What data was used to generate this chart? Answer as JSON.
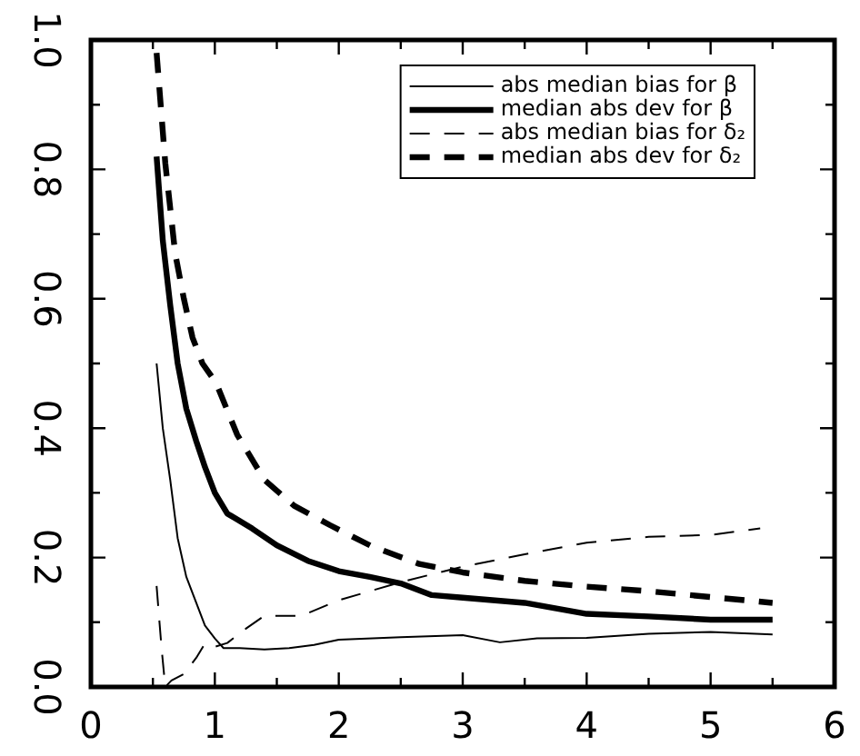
{
  "chart_data": {
    "type": "line",
    "xlim": [
      0,
      6
    ],
    "ylim": [
      0,
      1
    ],
    "xticks": [
      0,
      1,
      2,
      3,
      4,
      5,
      6
    ],
    "yticks": [
      {
        "value": 0,
        "label": "0.0"
      },
      0.2,
      0.4,
      0.6,
      0.8,
      {
        "value": 1,
        "label": "1.0"
      }
    ],
    "grid": false,
    "legend": "top right",
    "marker": "none",
    "series": [
      {
        "name": "abs median bias for β",
        "color": "#000000",
        "line_style": "solid",
        "x": [
          0.53,
          0.58,
          0.64,
          0.7,
          0.77,
          0.85,
          0.92,
          1.0,
          1.07,
          1.2,
          1.4,
          1.6,
          1.8,
          2.0,
          2.5,
          3.0,
          3.3,
          3.6,
          4.0,
          4.5,
          5.0,
          5.5
        ],
        "values": [
          0.5,
          0.4,
          0.32,
          0.23,
          0.17,
          0.13,
          0.095,
          0.075,
          0.06,
          0.06,
          0.058,
          0.06,
          0.065,
          0.073,
          0.077,
          0.08,
          0.069,
          0.075,
          0.076,
          0.082,
          0.085,
          0.081
        ]
      },
      {
        "name": "median abs dev for β",
        "color": "#000000",
        "line_style": "solid",
        "x": [
          0.53,
          0.58,
          0.64,
          0.7,
          0.77,
          0.85,
          0.92,
          1.0,
          1.1,
          1.3,
          1.5,
          1.75,
          2.0,
          2.25,
          2.5,
          2.75,
          3.0,
          3.5,
          4.0,
          4.5,
          5.0,
          5.5
        ],
        "values": [
          0.82,
          0.69,
          0.59,
          0.5,
          0.43,
          0.38,
          0.34,
          0.3,
          0.268,
          0.245,
          0.219,
          0.195,
          0.179,
          0.17,
          0.16,
          0.142,
          0.138,
          0.13,
          0.113,
          0.109,
          0.104,
          0.104
        ]
      },
      {
        "name": "abs median bias for δ₂",
        "color": "#000000",
        "line_style": "dashed",
        "x": [
          0.53,
          0.57,
          0.6,
          0.65,
          0.75,
          0.85,
          0.92,
          1.0,
          1.1,
          1.25,
          1.4,
          1.7,
          2.0,
          2.5,
          3.0,
          3.5,
          4.0,
          4.5,
          5.0,
          5.4
        ],
        "values": [
          0.156,
          0.06,
          0.0,
          0.01,
          0.02,
          0.045,
          0.067,
          0.062,
          0.068,
          0.09,
          0.11,
          0.11,
          0.134,
          0.162,
          0.186,
          0.205,
          0.223,
          0.232,
          0.235,
          0.245
        ]
      },
      {
        "name": "median abs dev for δ₂",
        "color": "#000000",
        "line_style": "dashed",
        "x": [
          0.53,
          0.6,
          0.68,
          0.75,
          0.82,
          0.9,
          1.01,
          1.18,
          1.4,
          1.64,
          1.93,
          2.27,
          2.65,
          3.0,
          3.5,
          4.0,
          4.5,
          5.0,
          5.5
        ],
        "values": [
          0.98,
          0.81,
          0.67,
          0.6,
          0.54,
          0.5,
          0.47,
          0.39,
          0.32,
          0.28,
          0.25,
          0.217,
          0.19,
          0.177,
          0.164,
          0.155,
          0.148,
          0.139,
          0.13
        ]
      }
    ]
  }
}
